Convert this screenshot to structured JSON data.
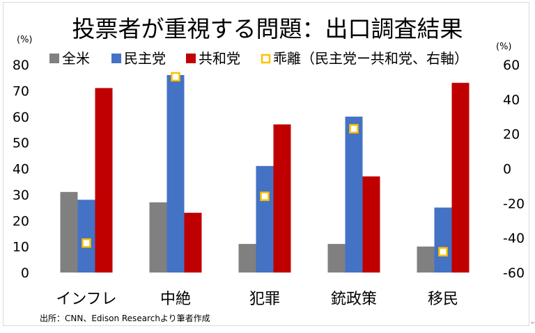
{
  "chart_data": {
    "type": "bar",
    "title": "投票者が重視する問題：出口調査結果",
    "left_unit": "(%)",
    "right_unit": "(%)",
    "categories": [
      "インフレ",
      "中絶",
      "犯罪",
      "銃政策",
      "移民"
    ],
    "series": [
      {
        "name": "全米",
        "color": "#808080",
        "values": [
          31,
          27,
          11,
          11,
          10
        ],
        "axis": "left"
      },
      {
        "name": "民主党",
        "color": "#4472c4",
        "values": [
          28,
          76,
          41,
          60,
          25
        ],
        "axis": "left"
      },
      {
        "name": "共和党",
        "color": "#c00000",
        "values": [
          71,
          23,
          57,
          37,
          73
        ],
        "axis": "left"
      }
    ],
    "marker_series": {
      "name": "乖離（民主党ー共和党、右軸）",
      "color": "#ffc000",
      "values": [
        -43,
        53,
        -16,
        23,
        -48
      ],
      "axis": "right"
    },
    "ylim_left": [
      0,
      80
    ],
    "ylim_right": [
      -60,
      60
    ],
    "yticks_left": [
      0,
      10,
      20,
      30,
      40,
      50,
      60,
      70,
      80
    ],
    "yticks_right": [
      -60,
      -40,
      -20,
      0,
      20,
      40,
      60
    ],
    "legend_position": "top",
    "grid": false,
    "source": "出所：CNN、Edison Researchより筆者作成"
  }
}
